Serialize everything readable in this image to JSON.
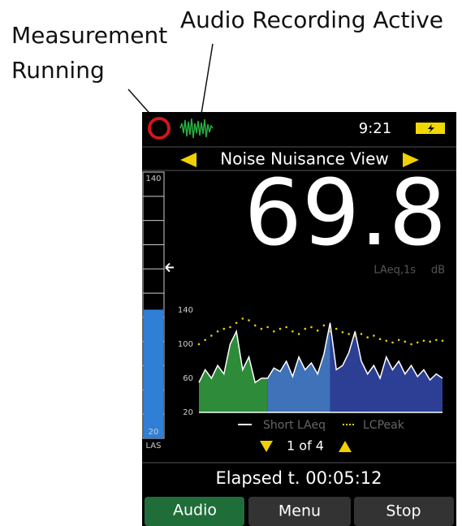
{
  "annotations": {
    "measurement": [
      "Measurement",
      "Running"
    ],
    "audio": "Audio Recording Active"
  },
  "status": {
    "time": "9:21"
  },
  "view": {
    "title": "Noise Nuisance View"
  },
  "meter": {
    "ylim": [
      20,
      140
    ],
    "yticks": [
      20,
      140
    ],
    "value": 78,
    "marker": 97,
    "color": "#2f7fd6",
    "label": "LAS"
  },
  "reading": {
    "value": "69.8",
    "parameter": "LAeq,1s",
    "unit": "dB"
  },
  "chart_data": {
    "type": "area",
    "ylim": [
      20,
      140
    ],
    "yticks": [
      20,
      60,
      100,
      140
    ],
    "series": [
      {
        "name": "Short LAeq",
        "color": "#ffffff",
        "values": [
          55,
          70,
          60,
          75,
          65,
          100,
          115,
          70,
          85,
          55,
          60,
          60,
          72,
          68,
          80,
          62,
          85,
          70,
          78,
          65,
          88,
          125,
          70,
          75,
          90,
          115,
          80,
          65,
          75,
          60,
          85,
          70,
          80,
          65,
          75,
          62,
          70,
          58,
          65,
          60
        ],
        "fill_colors": [
          "#2e8b3a",
          "#2e8b3a",
          "#2e8b3a",
          "#2e8b3a",
          "#2e8b3a",
          "#2e8b3a",
          "#2e8b3a",
          "#2e8b3a",
          "#2e8b3a",
          "#2e8b3a",
          "#2e8b3a",
          "#3f72b8",
          "#3f72b8",
          "#3f72b8",
          "#3f72b8",
          "#3f72b8",
          "#3f72b8",
          "#3f72b8",
          "#3f72b8",
          "#3f72b8",
          "#3f72b8",
          "#2d3f95",
          "#2d3f95",
          "#2d3f95",
          "#2d3f95",
          "#2d3f95",
          "#2d3f95",
          "#2d3f95",
          "#2d3f95",
          "#2d3f95",
          "#2d3f95",
          "#2d3f95",
          "#2d3f95",
          "#2d3f95",
          "#2d3f95",
          "#2d3f95",
          "#2d3f95",
          "#2d3f95",
          "#2d3f95",
          "#2d3f95"
        ]
      },
      {
        "name": "LCPeak",
        "color": "#e8d200",
        "style": "dotted",
        "values": [
          100,
          105,
          110,
          115,
          118,
          120,
          125,
          130,
          128,
          122,
          118,
          120,
          115,
          118,
          120,
          115,
          112,
          118,
          120,
          116,
          122,
          115,
          118,
          114,
          112,
          110,
          112,
          108,
          110,
          106,
          104,
          102,
          105,
          103,
          100,
          102,
          104,
          103,
          105,
          104
        ]
      }
    ]
  },
  "pager": "1 of 4",
  "elapsed": "Elapsed t. 00:05:12",
  "buttons": [
    "Audio",
    "Menu",
    "Stop"
  ]
}
